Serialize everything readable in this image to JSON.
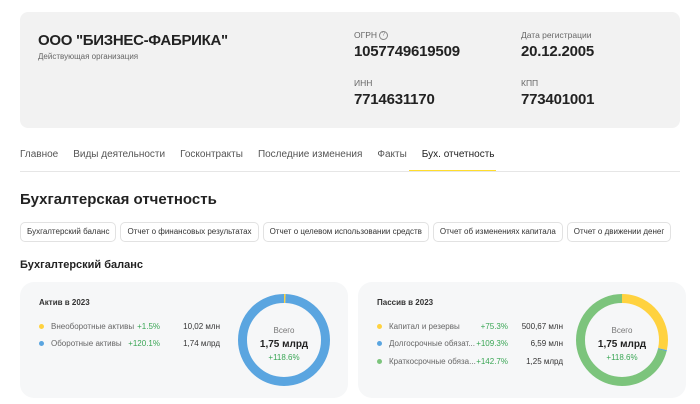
{
  "company": {
    "name": "ООО \"БИЗНЕС-ФАБРИКА\"",
    "status": "Действующая организация",
    "ogrn_label": "ОГРН",
    "ogrn": "1057749619509",
    "reg_label": "Дата регистрации",
    "reg_date": "20.12.2005",
    "inn_label": "ИНН",
    "inn": "7714631170",
    "kpp_label": "КПП",
    "kpp": "773401001"
  },
  "tabs": [
    {
      "label": "Главное"
    },
    {
      "label": "Виды деятельности"
    },
    {
      "label": "Госконтракты"
    },
    {
      "label": "Последние изменения"
    },
    {
      "label": "Факты"
    },
    {
      "label": "Бух. отчетность",
      "active": true
    }
  ],
  "section_title": "Бухгалтерская отчетность",
  "report_buttons": [
    "Бухгалтерский баланс",
    "Отчет о финансовых результатах",
    "Отчет о целевом использовании средств",
    "Отчет об изменениях капитала",
    "Отчет о движении денег"
  ],
  "subsection_title": "Бухгалтерский баланс",
  "colors": {
    "yellow": "#ffd23f",
    "blue": "#5aa5e0",
    "green": "#7cc47c",
    "accent": "#ffdd2d",
    "positive": "#3aa655"
  },
  "assets": {
    "title": "Актив в 2023",
    "total_label": "Всего",
    "total": "1,75 млрд",
    "total_change": "+118.6%",
    "rows": [
      {
        "name": "Внеоборотные активы",
        "change": "+1.5%",
        "amount": "10,02 млн",
        "value_mln": 10.02,
        "color": "#ffd23f"
      },
      {
        "name": "Оборотные активы",
        "change": "+120.1%",
        "amount": "1,74 млрд",
        "value_mln": 1740,
        "color": "#5aa5e0"
      }
    ]
  },
  "liabilities": {
    "title": "Пассив в 2023",
    "total_label": "Всего",
    "total": "1,75 млрд",
    "total_change": "+118.6%",
    "rows": [
      {
        "name": "Капитал и резервы",
        "change": "+75.3%",
        "amount": "500,67 млн",
        "value_mln": 500.67,
        "color": "#ffd23f"
      },
      {
        "name": "Долгосрочные обязат...",
        "change": "+109.3%",
        "amount": "6,59 млн",
        "value_mln": 6.59,
        "color": "#5aa5e0"
      },
      {
        "name": "Краткосрочные обяза...",
        "change": "+142.7%",
        "amount": "1,25 млрд",
        "value_mln": 1250,
        "color": "#7cc47c"
      }
    ]
  }
}
